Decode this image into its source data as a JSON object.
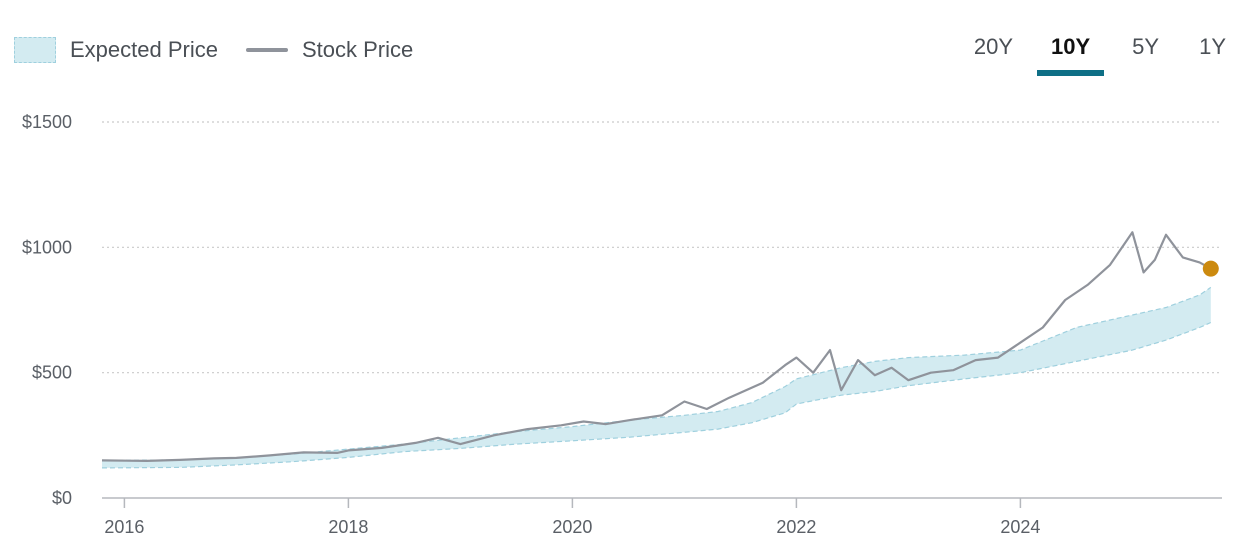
{
  "legend": {
    "expected_label": "Expected Price",
    "stock_label": "Stock Price"
  },
  "ranges": {
    "items": [
      "20Y",
      "10Y",
      "5Y",
      "1Y"
    ],
    "selected": "10Y"
  },
  "colors": {
    "band_fill": "#d3ebf1",
    "band_stroke": "#9fd0de",
    "stock_line": "#8f939b",
    "marker": "#cc8a0f",
    "accent": "#0e6f86",
    "grid": "#c9c9c9"
  },
  "chart_data": {
    "type": "area",
    "title": "",
    "xlabel": "",
    "ylabel": "",
    "xlim": [
      2015.8,
      2025.8
    ],
    "ylim": [
      0,
      1500
    ],
    "yticks": [
      0,
      500,
      1000,
      1500
    ],
    "ytick_labels": [
      "$0",
      "$500",
      "$1000",
      "$1500"
    ],
    "xticks": [
      2016,
      2018,
      2020,
      2022,
      2024
    ],
    "xtick_labels": [
      "2016",
      "2018",
      "2020",
      "2022",
      "2024"
    ],
    "grid": true,
    "series": [
      {
        "name": "Expected Price",
        "kind": "band",
        "x": [
          2015.8,
          2016.5,
          2017.0,
          2017.5,
          2018.0,
          2018.5,
          2019.0,
          2019.5,
          2020.0,
          2020.5,
          2021.0,
          2021.3,
          2021.6,
          2021.9,
          2022.0,
          2022.4,
          2022.7,
          2023.0,
          2023.5,
          2024.0,
          2024.5,
          2025.0,
          2025.3,
          2025.6,
          2025.7
        ],
        "lower": [
          120,
          122,
          132,
          145,
          162,
          185,
          198,
          215,
          228,
          242,
          262,
          275,
          300,
          340,
          375,
          410,
          425,
          448,
          475,
          500,
          545,
          590,
          630,
          680,
          700
        ],
        "upper": [
          150,
          152,
          160,
          175,
          195,
          215,
          240,
          265,
          285,
          310,
          330,
          345,
          380,
          445,
          475,
          520,
          545,
          560,
          570,
          590,
          680,
          730,
          760,
          810,
          840
        ]
      },
      {
        "name": "Stock Price",
        "kind": "line",
        "x": [
          2015.8,
          2016.2,
          2016.5,
          2016.8,
          2017.0,
          2017.3,
          2017.6,
          2017.9,
          2018.0,
          2018.3,
          2018.6,
          2018.8,
          2019.0,
          2019.3,
          2019.6,
          2019.9,
          2020.1,
          2020.3,
          2020.5,
          2020.8,
          2021.0,
          2021.2,
          2021.4,
          2021.7,
          2021.9,
          2022.0,
          2022.15,
          2022.3,
          2022.4,
          2022.55,
          2022.7,
          2022.85,
          2023.0,
          2023.2,
          2023.4,
          2023.6,
          2023.8,
          2024.0,
          2024.2,
          2024.4,
          2024.6,
          2024.8,
          2025.0,
          2025.1,
          2025.2,
          2025.3,
          2025.45,
          2025.6,
          2025.7
        ],
        "values": [
          150,
          148,
          152,
          158,
          160,
          170,
          182,
          180,
          190,
          200,
          220,
          240,
          215,
          250,
          275,
          290,
          305,
          295,
          310,
          330,
          385,
          355,
          400,
          460,
          530,
          560,
          500,
          590,
          430,
          550,
          490,
          520,
          470,
          500,
          510,
          550,
          560,
          620,
          680,
          790,
          850,
          930,
          1060,
          900,
          950,
          1050,
          960,
          940,
          915
        ]
      }
    ],
    "annotations": [
      {
        "name": "latest-price-marker",
        "x": 2025.7,
        "y": 915
      }
    ]
  }
}
